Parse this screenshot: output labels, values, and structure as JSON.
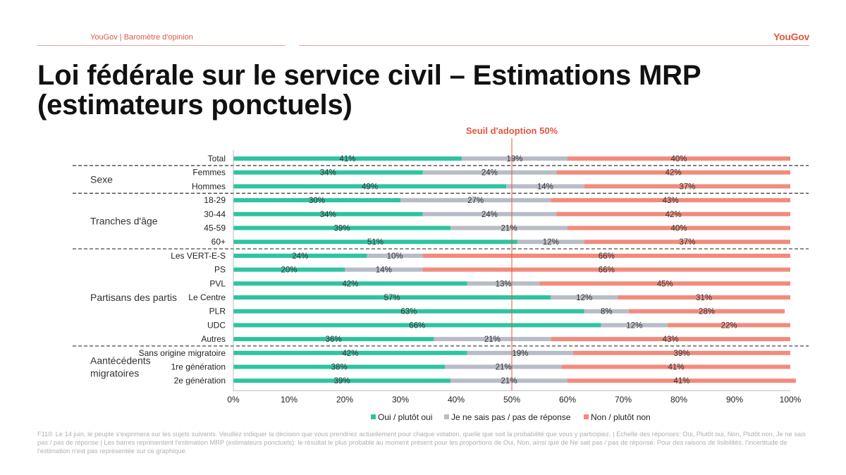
{
  "header": {
    "left_text": "YouGov | Baromètre d'opinion",
    "logo_text": "YouGov"
  },
  "title": "Loi fédérale sur le service civil – Estimations MRP (estimateurs ponctuels)",
  "footnote": "F110: Le 14 juin, le peuple s'exprimera sur les sujets suivants. Veuillez indiquer la décision que vous prendriez actuellement pour chaque votation, quelle que soit la probabilité que vous y participiez. | Echelle des réponses: Oui, Plutôt oui, Non, Plutôt non, Je ne sais pas / pas de réponse | Les barres représentent l'estimation MRP (estimateurs ponctuels): le résultat le plus probable au moment présent pour les proportions de Oui, Non, ainsi que de Ne sait pas / pas de réponse. Pour des raisons de lisibilités, l'incertitude de l'estimation n'est pas représentée sur ce graphique.",
  "colors": {
    "oui": "#2ec4a0",
    "nsp": "#b8bcc6",
    "non": "#f28b7d",
    "threshold": "#e2563f"
  },
  "chart_data": {
    "type": "bar",
    "orientation": "horizontal",
    "stacked": true,
    "threshold": {
      "value": 50,
      "label": "Seuil d'adoption 50%"
    },
    "xlim": [
      0,
      100
    ],
    "x_ticks": [
      "0%",
      "10%",
      "20%",
      "30%",
      "40%",
      "50%",
      "60%",
      "70%",
      "80%",
      "90%",
      "100%"
    ],
    "legend_position": "bottom",
    "series": [
      {
        "name": "Oui / plutôt oui"
      },
      {
        "name": "Je ne sais pas / pas de réponse"
      },
      {
        "name": "Non / plutôt non"
      }
    ],
    "groups": [
      {
        "name": "",
        "rows": [
          {
            "label": "Total",
            "values": [
              41,
              19,
              40
            ]
          }
        ]
      },
      {
        "name": "Sexe",
        "rows": [
          {
            "label": "Femmes",
            "values": [
              34,
              24,
              42
            ]
          },
          {
            "label": "Hommes",
            "values": [
              49,
              14,
              37
            ]
          }
        ]
      },
      {
        "name": "Tranches d'âge",
        "rows": [
          {
            "label": "18-29",
            "values": [
              30,
              27,
              43
            ]
          },
          {
            "label": "30-44",
            "values": [
              34,
              24,
              42
            ]
          },
          {
            "label": "45-59",
            "values": [
              39,
              21,
              40
            ]
          },
          {
            "label": "60+",
            "values": [
              51,
              12,
              37
            ]
          }
        ]
      },
      {
        "name": "Partisans des partis",
        "rows": [
          {
            "label": "Les VERT-E-S",
            "values": [
              24,
              10,
              66
            ]
          },
          {
            "label": "PS",
            "values": [
              20,
              14,
              66
            ]
          },
          {
            "label": "PVL",
            "values": [
              42,
              13,
              45
            ]
          },
          {
            "label": "Le Centre",
            "values": [
              57,
              12,
              31
            ]
          },
          {
            "label": "PLR",
            "values": [
              63,
              8,
              28
            ]
          },
          {
            "label": "UDC",
            "values": [
              66,
              12,
              22
            ]
          },
          {
            "label": "Autres",
            "values": [
              36,
              21,
              43
            ]
          }
        ]
      },
      {
        "name": "Aantécédents\nmigratoires",
        "rows": [
          {
            "label": "Sans origine migratoire",
            "values": [
              42,
              19,
              39
            ]
          },
          {
            "label": "1re génération",
            "values": [
              38,
              21,
              41
            ]
          },
          {
            "label": "2e génération",
            "values": [
              39,
              21,
              41
            ]
          }
        ]
      }
    ]
  }
}
